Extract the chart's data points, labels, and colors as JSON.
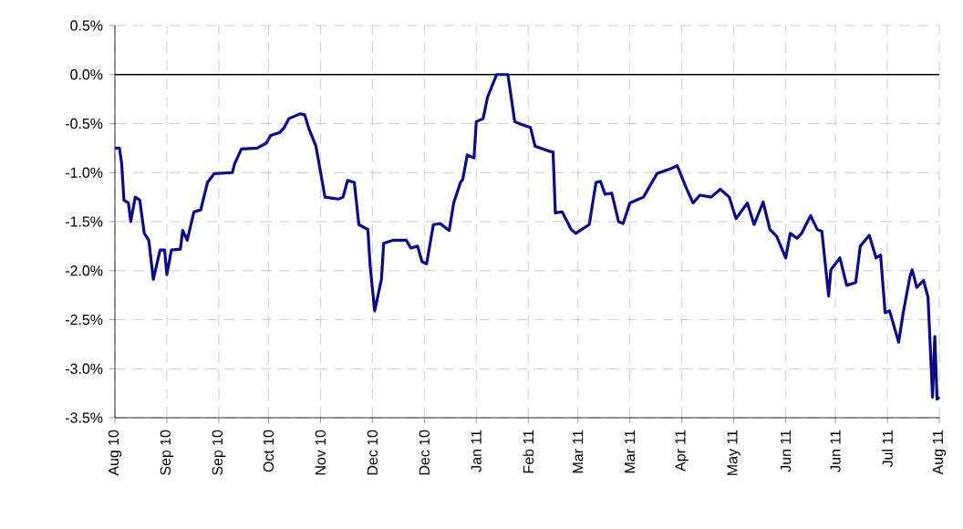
{
  "chart_data": {
    "type": "line",
    "color": "#0c0c8a",
    "grid": true,
    "marker": "none",
    "line_style": "solid",
    "x": [
      "2010-08-09",
      "2010-08-11",
      "2010-08-12",
      "2010-08-13",
      "2010-08-15",
      "2010-08-16",
      "2010-08-18",
      "2010-08-20",
      "2010-08-22",
      "2010-08-24",
      "2010-08-26",
      "2010-08-29",
      "2010-08-31",
      "2010-09-01",
      "2010-09-03",
      "2010-09-07",
      "2010-09-08",
      "2010-09-10",
      "2010-09-13",
      "2010-09-16",
      "2010-09-19",
      "2010-09-22",
      "2010-09-30",
      "2010-10-01",
      "2010-10-04",
      "2010-10-11",
      "2010-10-15",
      "2010-10-17",
      "2010-10-21",
      "2010-10-23",
      "2010-10-25",
      "2010-10-28",
      "2010-10-30",
      "2010-11-01",
      "2010-11-03",
      "2010-11-06",
      "2010-11-10",
      "2010-11-16",
      "2010-11-18",
      "2010-11-20",
      "2010-11-23",
      "2010-11-25",
      "2010-11-29",
      "2010-11-30",
      "2010-12-02",
      "2010-12-05",
      "2010-12-06",
      "2010-12-10",
      "2010-12-16",
      "2010-12-18",
      "2010-12-21",
      "2010-12-23",
      "2010-12-25",
      "2010-12-28",
      "2010-12-31",
      "2011-01-04",
      "2011-01-06",
      "2011-01-09",
      "2011-01-10",
      "2011-01-12",
      "2011-01-15",
      "2011-01-16",
      "2011-01-19",
      "2011-01-21",
      "2011-01-25",
      "2011-01-30",
      "2011-02-02",
      "2011-02-05",
      "2011-02-09",
      "2011-02-11",
      "2011-02-17",
      "2011-02-19",
      "2011-02-20",
      "2011-02-23",
      "2011-02-27",
      "2011-03-01",
      "2011-03-07",
      "2011-03-10",
      "2011-03-12",
      "2011-03-14",
      "2011-03-17",
      "2011-03-20",
      "2011-03-22",
      "2011-03-25",
      "2011-03-31",
      "2011-04-06",
      "2011-04-12",
      "2011-04-15",
      "2011-04-19",
      "2011-04-22",
      "2011-04-25",
      "2011-04-30",
      "2011-05-04",
      "2011-05-08",
      "2011-05-11",
      "2011-05-16",
      "2011-05-19",
      "2011-05-23",
      "2011-05-26",
      "2011-05-29",
      "2011-06-02",
      "2011-06-04",
      "2011-06-07",
      "2011-06-09",
      "2011-06-13",
      "2011-06-16",
      "2011-06-18",
      "2011-06-21",
      "2011-06-22",
      "2011-06-26",
      "2011-06-29",
      "2011-07-03",
      "2011-07-05",
      "2011-07-09",
      "2011-07-12",
      "2011-07-14",
      "2011-07-16",
      "2011-07-18",
      "2011-07-22",
      "2011-07-24",
      "2011-07-27",
      "2011-07-28",
      "2011-07-30",
      "2011-08-02",
      "2011-08-04",
      "2011-08-06",
      "2011-08-07",
      "2011-08-08",
      "2011-08-09"
    ],
    "values": [
      -0.75,
      -0.75,
      -0.91,
      -1.28,
      -1.31,
      -1.5,
      -1.25,
      -1.28,
      -1.62,
      -1.69,
      -2.09,
      -1.79,
      -1.79,
      -2.04,
      -1.79,
      -1.78,
      -1.59,
      -1.69,
      -1.4,
      -1.38,
      -1.1,
      -1.01,
      -1.0,
      -0.91,
      -0.76,
      -0.75,
      -0.7,
      -0.62,
      -0.59,
      -0.54,
      -0.45,
      -0.42,
      -0.4,
      -0.41,
      -0.56,
      -0.73,
      -1.25,
      -1.27,
      -1.25,
      -1.08,
      -1.1,
      -1.53,
      -1.58,
      -1.95,
      -2.41,
      -2.09,
      -1.72,
      -1.69,
      -1.69,
      -1.77,
      -1.75,
      -1.91,
      -1.93,
      -1.53,
      -1.52,
      -1.59,
      -1.31,
      -1.1,
      -1.07,
      -0.82,
      -0.85,
      -0.48,
      -0.45,
      -0.23,
      0.0,
      0.0,
      -0.48,
      -0.51,
      -0.54,
      -0.73,
      -0.78,
      -0.79,
      -1.41,
      -1.4,
      -1.58,
      -1.62,
      -1.53,
      -1.1,
      -1.09,
      -1.22,
      -1.21,
      -1.5,
      -1.52,
      -1.31,
      -1.25,
      -1.01,
      -0.96,
      -0.93,
      -1.16,
      -1.31,
      -1.23,
      -1.25,
      -1.17,
      -1.25,
      -1.47,
      -1.31,
      -1.53,
      -1.3,
      -1.58,
      -1.65,
      -1.87,
      -1.62,
      -1.67,
      -1.62,
      -1.44,
      -1.58,
      -1.6,
      -2.26,
      -1.99,
      -1.87,
      -2.15,
      -2.12,
      -1.75,
      -1.64,
      -1.87,
      -1.84,
      -2.43,
      -2.41,
      -2.73,
      -2.43,
      -2.06,
      -1.99,
      -2.17,
      -2.1,
      -2.27,
      -3.29,
      -2.67,
      -3.31,
      -3.29
    ],
    "xlim": [
      "2010-08-09",
      "2011-08-09"
    ],
    "xticks": [
      {
        "value": "2010-08-09",
        "label": "Aug 10"
      },
      {
        "value": "2010-09-01",
        "label": "Sep 10"
      },
      {
        "value": "2010-09-24",
        "label": "Sep 10"
      },
      {
        "value": "2010-10-16",
        "label": "Oct 10"
      },
      {
        "value": "2010-11-08",
        "label": "Nov 10"
      },
      {
        "value": "2010-12-01",
        "label": "Dec 10"
      },
      {
        "value": "2010-12-24",
        "label": "Dec 10"
      },
      {
        "value": "2011-01-16",
        "label": "Jan 11"
      },
      {
        "value": "2011-02-08",
        "label": "Feb 11"
      },
      {
        "value": "2011-03-02",
        "label": "Mar 11"
      },
      {
        "value": "2011-03-25",
        "label": "Mar 11"
      },
      {
        "value": "2011-04-17",
        "label": "Apr 11"
      },
      {
        "value": "2011-05-10",
        "label": "May 11"
      },
      {
        "value": "2011-06-02",
        "label": "Jun 11"
      },
      {
        "value": "2011-06-24",
        "label": "Jun 11"
      },
      {
        "value": "2011-07-17",
        "label": "Jul 11"
      },
      {
        "value": "2011-08-09",
        "label": "Aug 11"
      }
    ],
    "ylim": [
      -3.5,
      0.5
    ],
    "yticks": [
      {
        "value": 0.5,
        "label": "0.5%"
      },
      {
        "value": 0,
        "label": "0.0%"
      },
      {
        "value": -0.5,
        "label": "-0.5%"
      },
      {
        "value": -1,
        "label": "-1.0%"
      },
      {
        "value": -1.5,
        "label": "-1.5%"
      },
      {
        "value": -2,
        "label": "-2.0%"
      },
      {
        "value": -2.5,
        "label": "-2.5%"
      },
      {
        "value": -3,
        "label": "-3.0%"
      },
      {
        "value": -3.5,
        "label": "-3.5%"
      }
    ],
    "ref_lines": [
      {
        "axis": "y",
        "value": 0,
        "color": "#000000"
      }
    ]
  }
}
